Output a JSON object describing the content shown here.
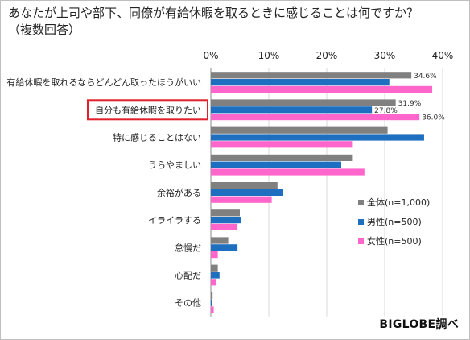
{
  "title_line1": "あなたが上司や部下、同僚が有給休暇を取るときに感じることは何ですか？",
  "title_line2": "（複数回答）",
  "source": "BIGLOBE調べ",
  "chart_data": {
    "type": "bar",
    "orientation": "horizontal",
    "title": "あなたが上司や部下、同僚が有給休暇を取るときに感じることは何ですか？（複数回答）",
    "categories": [
      "有給休暇を取れるならどんどん取ったほうがいい",
      "自分も有給休暇を取りたい",
      "特に感じることはない",
      "うらやましい",
      "余裕がある",
      "イライラする",
      "怠慢だ",
      "心配だ",
      "その他"
    ],
    "highlighted_category": "自分も有給休暇を取りたい",
    "xlim": [
      0,
      40
    ],
    "x_ticks": [
      "0%",
      "10%",
      "20%",
      "30%",
      "40%"
    ],
    "series": [
      {
        "name": "全体(n=1,000)",
        "color": "#808080",
        "values": [
          34.6,
          31.9,
          30.5,
          24.5,
          11.5,
          5.0,
          3.0,
          1.2,
          0.3
        ],
        "value_labels": [
          "34.6%",
          "31.9%",
          "",
          "",
          "",
          "",
          "",
          "",
          ""
        ]
      },
      {
        "name": "男性(n=500)",
        "color": "#1f6fc0",
        "values": [
          30.8,
          27.8,
          36.8,
          22.5,
          12.5,
          5.2,
          4.6,
          1.5,
          0.2
        ],
        "value_labels": [
          "",
          "27.8%",
          "",
          "",
          "",
          "",
          "",
          "",
          ""
        ]
      },
      {
        "name": "女性(n=500)",
        "color": "#ff66cc",
        "values": [
          38.2,
          36.0,
          24.5,
          26.5,
          10.5,
          4.6,
          1.2,
          0.9,
          0.5
        ],
        "value_labels": [
          "",
          "36.0%",
          "",
          "",
          "",
          "",
          "",
          "",
          ""
        ]
      }
    ],
    "legend_position": "bottom-right",
    "grid": true
  }
}
